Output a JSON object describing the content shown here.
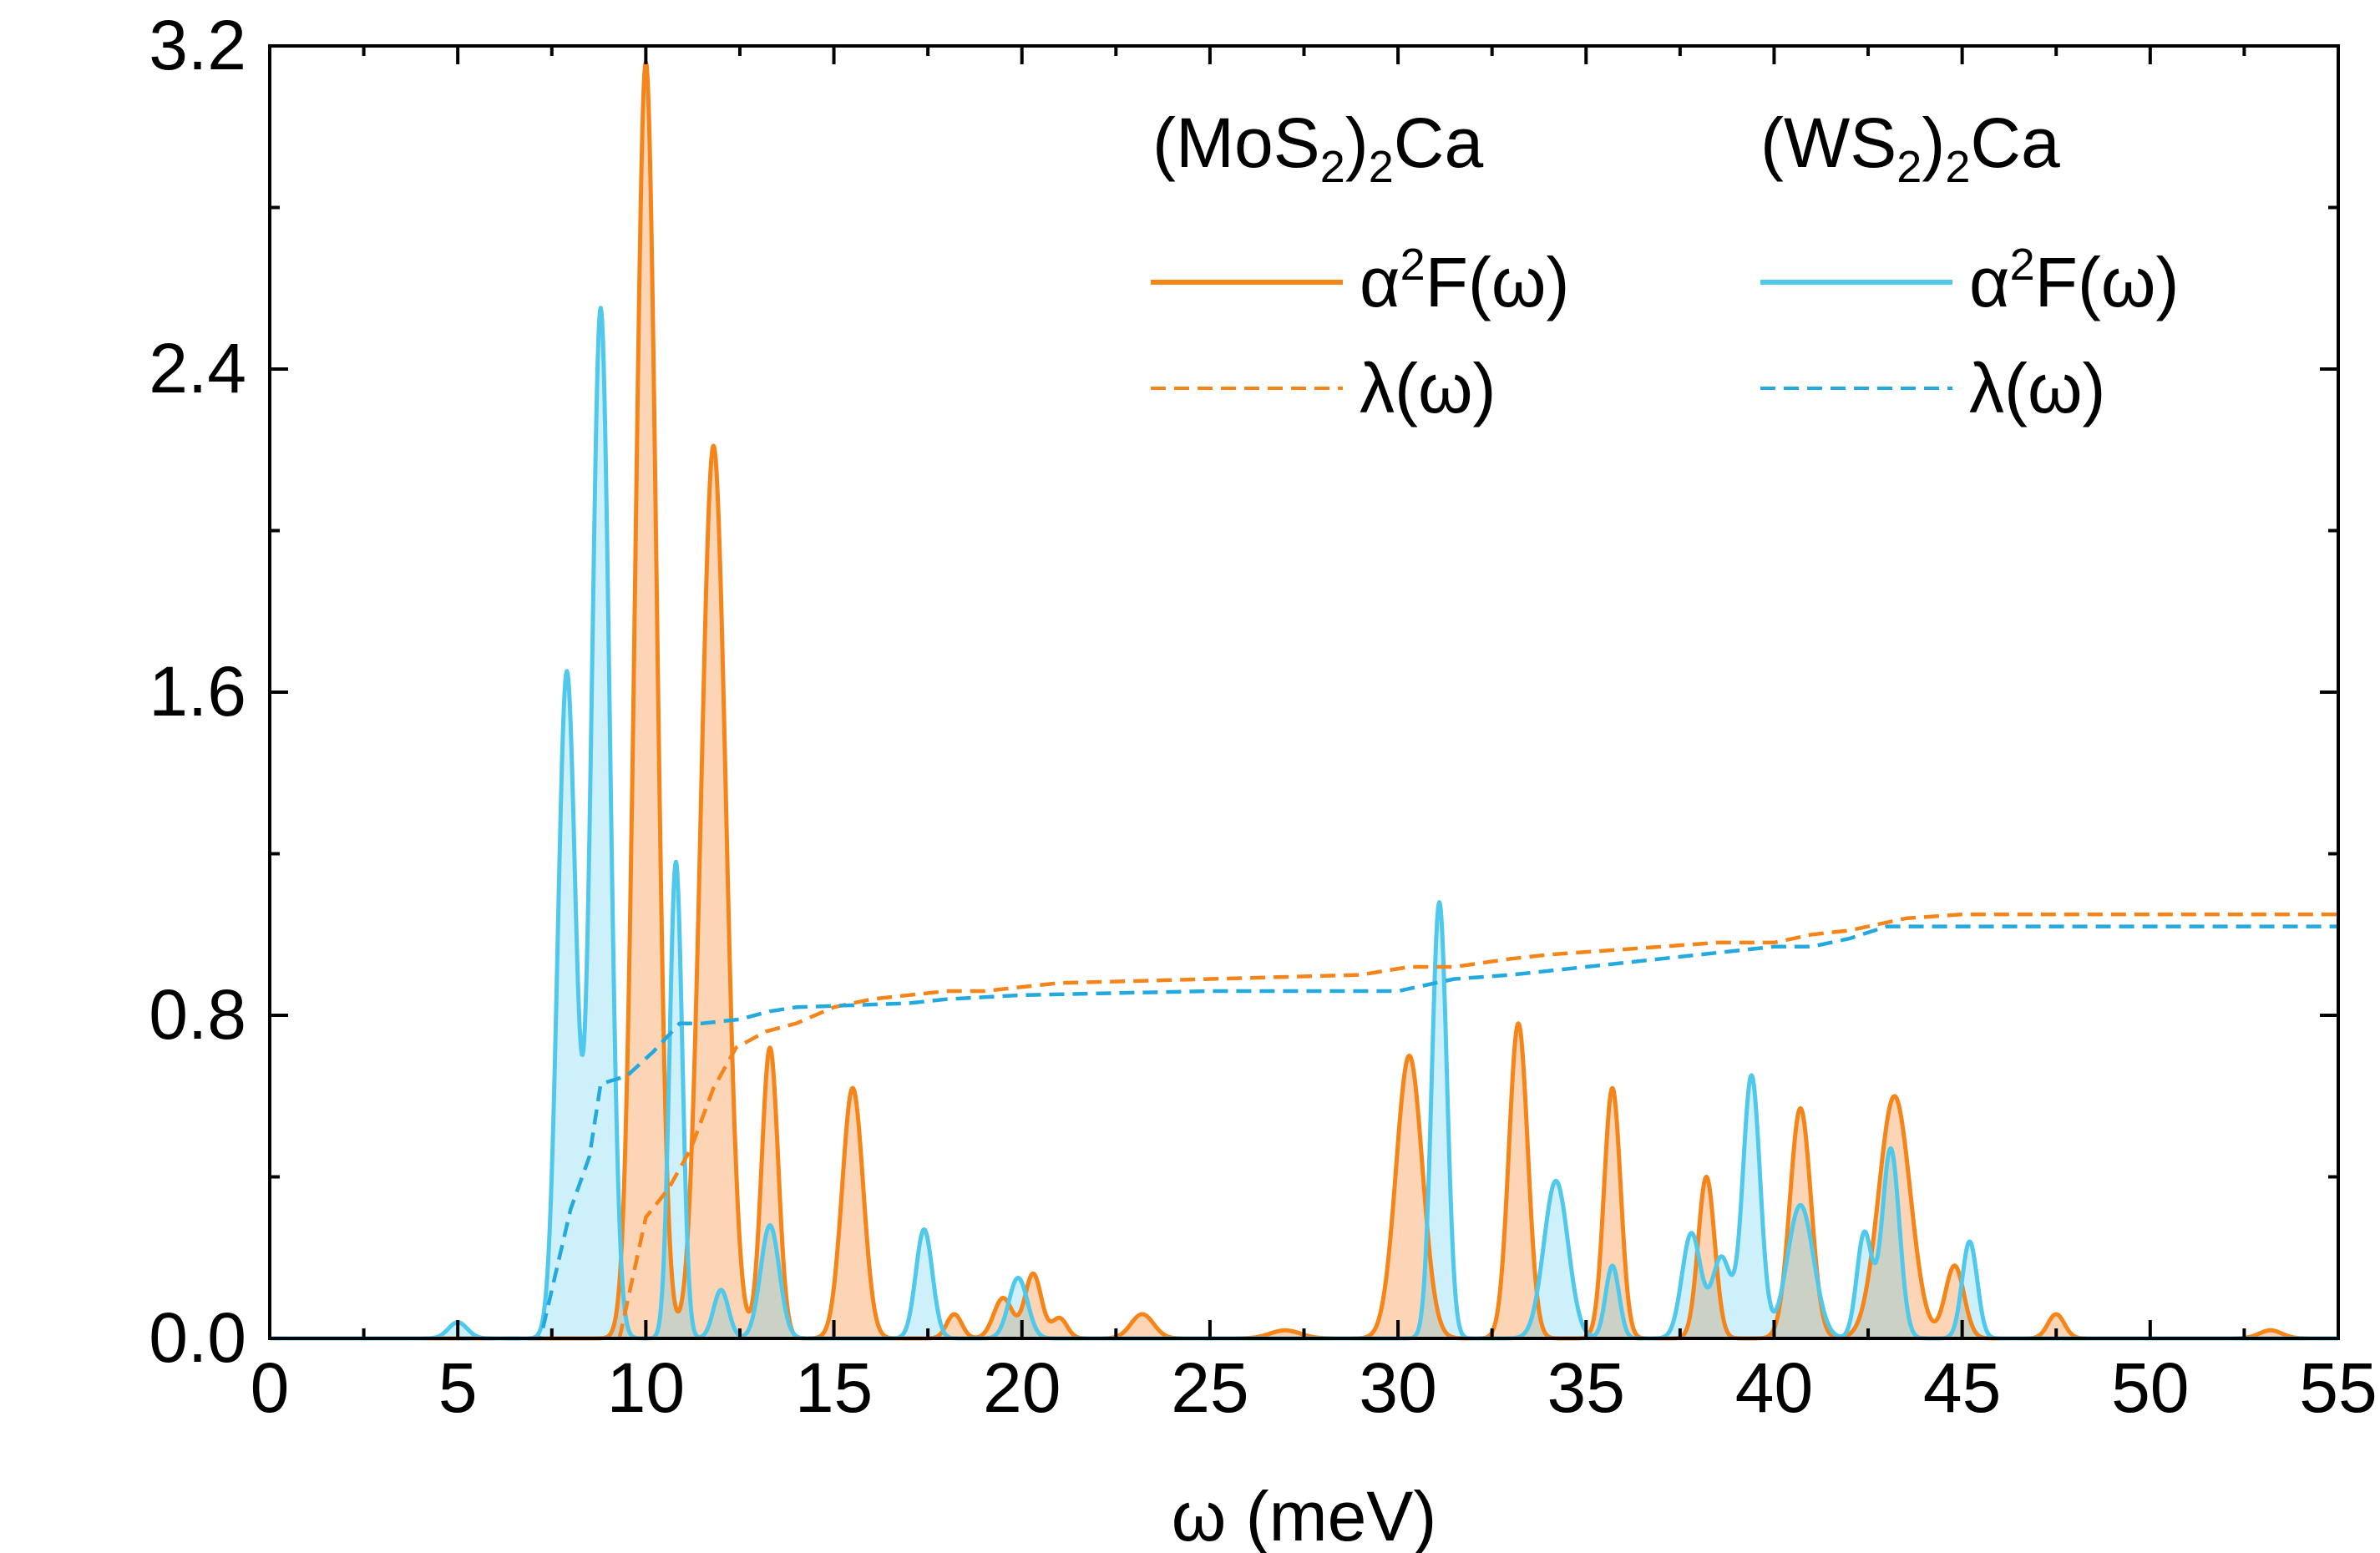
{
  "chart_data": {
    "type": "line",
    "xlabel": "ω (meV)",
    "ylabel": "",
    "xlim": [
      0,
      55
    ],
    "ylim": [
      0,
      3.2
    ],
    "x_ticks": [
      "0",
      "5",
      "10",
      "15",
      "20",
      "25",
      "30",
      "35",
      "40",
      "45",
      "50",
      "55"
    ],
    "y_ticks": [
      "0.0",
      "0.8",
      "1.6",
      "2.4",
      "3.2"
    ],
    "legend": {
      "placement": "top-right",
      "groups": [
        {
          "main": "(MoS",
          "sub": "2",
          "close": ")",
          "sub2": "2",
          "tail": "Ca",
          "color": "#f58419"
        },
        {
          "main": "(WS",
          "sub": "2",
          "close": ")",
          "sub2": "2",
          "tail": "Ca",
          "color": "#4fc8ec"
        }
      ],
      "alpha_label": {
        "base": "α",
        "sup": "2",
        "rest": "F(ω)"
      },
      "lambda_label": "λ(ω)"
    },
    "series": [
      {
        "name": "(MoS2)2Ca α2F(ω)",
        "kind": "a2F",
        "color": "#f58419",
        "fill": "rgba(245,150,70,0.40)",
        "peaks": [
          {
            "center": 10.0,
            "height": 3.16,
            "width": 0.28
          },
          {
            "center": 11.8,
            "height": 2.21,
            "width": 0.33
          },
          {
            "center": 13.3,
            "height": 0.72,
            "width": 0.22
          },
          {
            "center": 15.5,
            "height": 0.62,
            "width": 0.28
          },
          {
            "center": 18.2,
            "height": 0.06,
            "width": 0.2
          },
          {
            "center": 19.5,
            "height": 0.1,
            "width": 0.25
          },
          {
            "center": 20.3,
            "height": 0.16,
            "width": 0.22
          },
          {
            "center": 21.0,
            "height": 0.05,
            "width": 0.2
          },
          {
            "center": 23.2,
            "height": 0.06,
            "width": 0.3
          },
          {
            "center": 27.0,
            "height": 0.02,
            "width": 0.4
          },
          {
            "center": 30.3,
            "height": 0.7,
            "width": 0.35
          },
          {
            "center": 33.2,
            "height": 0.78,
            "width": 0.25
          },
          {
            "center": 35.7,
            "height": 0.62,
            "width": 0.22
          },
          {
            "center": 38.2,
            "height": 0.4,
            "width": 0.22
          },
          {
            "center": 40.7,
            "height": 0.57,
            "width": 0.28
          },
          {
            "center": 43.2,
            "height": 0.6,
            "width": 0.42
          },
          {
            "center": 44.8,
            "height": 0.18,
            "width": 0.25
          },
          {
            "center": 47.5,
            "height": 0.06,
            "width": 0.22
          },
          {
            "center": 53.2,
            "height": 0.02,
            "width": 0.3
          }
        ]
      },
      {
        "name": "(WS2)2Ca α2F(ω)",
        "kind": "a2F",
        "color": "#4fc8ec",
        "fill": "rgba(79,200,236,0.28)",
        "peaks": [
          {
            "center": 5.0,
            "height": 0.04,
            "width": 0.25
          },
          {
            "center": 7.9,
            "height": 1.65,
            "width": 0.24
          },
          {
            "center": 8.8,
            "height": 2.55,
            "width": 0.24
          },
          {
            "center": 10.8,
            "height": 1.18,
            "width": 0.17
          },
          {
            "center": 12.0,
            "height": 0.12,
            "width": 0.2
          },
          {
            "center": 13.3,
            "height": 0.28,
            "width": 0.25
          },
          {
            "center": 17.4,
            "height": 0.27,
            "width": 0.22
          },
          {
            "center": 19.9,
            "height": 0.15,
            "width": 0.25
          },
          {
            "center": 31.1,
            "height": 1.08,
            "width": 0.2
          },
          {
            "center": 34.2,
            "height": 0.39,
            "width": 0.32
          },
          {
            "center": 35.7,
            "height": 0.18,
            "width": 0.18
          },
          {
            "center": 37.8,
            "height": 0.26,
            "width": 0.25
          },
          {
            "center": 38.6,
            "height": 0.2,
            "width": 0.25
          },
          {
            "center": 39.4,
            "height": 0.65,
            "width": 0.23
          },
          {
            "center": 40.7,
            "height": 0.33,
            "width": 0.35
          },
          {
            "center": 42.4,
            "height": 0.26,
            "width": 0.2
          },
          {
            "center": 43.1,
            "height": 0.47,
            "width": 0.23
          },
          {
            "center": 45.2,
            "height": 0.24,
            "width": 0.2
          }
        ]
      },
      {
        "name": "(MoS2)2Ca λ(ω)",
        "kind": "lambda",
        "color": "#f58419",
        "x": [
          9.3,
          10.0,
          10.6,
          11.2,
          11.8,
          12.4,
          13.2,
          14.0,
          15.0,
          16.0,
          17.0,
          18.0,
          19.0,
          20.0,
          21.0,
          25.0,
          29.0,
          30.3,
          31.5,
          33.0,
          34.0,
          35.5,
          37.0,
          38.5,
          40.0,
          41.0,
          42.0,
          43.5,
          45.0,
          50.0,
          55.0
        ],
        "y": [
          0.0,
          0.3,
          0.37,
          0.47,
          0.62,
          0.72,
          0.76,
          0.78,
          0.82,
          0.84,
          0.85,
          0.86,
          0.86,
          0.87,
          0.88,
          0.89,
          0.9,
          0.92,
          0.92,
          0.94,
          0.95,
          0.96,
          0.97,
          0.98,
          0.98,
          1.0,
          1.01,
          1.04,
          1.05,
          1.05,
          1.05
        ]
      },
      {
        "name": "(WS2)2Ca λ(ω)",
        "kind": "lambda",
        "color": "#24a9df",
        "x": [
          5.0,
          6.0,
          7.2,
          7.6,
          8.0,
          8.5,
          8.8,
          9.5,
          10.2,
          10.9,
          11.5,
          12.5,
          13.3,
          14.0,
          17.0,
          18.0,
          20.0,
          25.0,
          30.0,
          31.5,
          33.0,
          35.0,
          37.0,
          39.0,
          40.0,
          41.0,
          42.0,
          43.0,
          45.0,
          50.0,
          55.0
        ],
        "y": [
          0.0,
          0.0,
          0.0,
          0.16,
          0.32,
          0.45,
          0.63,
          0.65,
          0.71,
          0.78,
          0.78,
          0.79,
          0.81,
          0.82,
          0.83,
          0.84,
          0.85,
          0.86,
          0.86,
          0.89,
          0.9,
          0.92,
          0.94,
          0.96,
          0.97,
          0.97,
          0.99,
          1.02,
          1.02,
          1.02,
          1.02
        ]
      }
    ]
  }
}
